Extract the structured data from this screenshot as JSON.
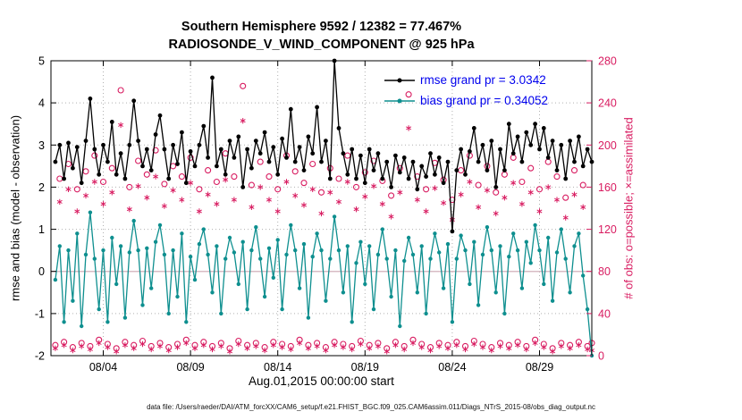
{
  "title": {
    "line1": "Southern Hemisphere 9592 / 12382 = 77.467%",
    "line2": "RADIOSONDE_V_WIND_COMPONENT @ 925 hPa"
  },
  "axes": {
    "ylabel_left": "rmse and bias (model - observation)",
    "ylabel_right": "# of obs: o=possible; ×=assimilated",
    "xlabel": "Aug.01,2015 00:00:00 start",
    "yticks_left": [
      -2,
      -1,
      0,
      1,
      2,
      3,
      4,
      5
    ],
    "yticks_right": [
      0,
      40,
      80,
      120,
      160,
      200,
      240,
      280
    ],
    "xticks": [
      {
        "day": 4,
        "label": "08/04"
      },
      {
        "day": 9,
        "label": "08/09"
      },
      {
        "day": 14,
        "label": "08/14"
      },
      {
        "day": 19,
        "label": "08/19"
      },
      {
        "day": 24,
        "label": "08/24"
      },
      {
        "day": 29,
        "label": "08/29"
      }
    ]
  },
  "legend": [
    {
      "name": "rmse",
      "label": "rmse grand pr = 3.0342",
      "color": "#000000"
    },
    {
      "name": "bias",
      "label": "bias grand pr = 0.34052",
      "color": "#0e8f8f"
    }
  ],
  "footer": "data file: /Users/raeder/DAI/ATM_forcXX/CAM6_setup/f.e21.FHIST_BGC.f09_025.CAM6assim.011/Diags_NTrS_2015-08/obs_diag_output.nc",
  "colors": {
    "rmse": "#000000",
    "bias": "#0e8f8f",
    "obs": "#d81b60",
    "legend_text": "#0000ee",
    "grid": "#b0b0b0",
    "zero_line": "#d8bcc4",
    "axis": "#000000",
    "tick_label": "#000000"
  },
  "chart_data": {
    "type": "line",
    "x_start_day": 1.25,
    "x_step_days": 0.25,
    "x_range_days": [
      1,
      32
    ],
    "ylim_left": [
      -2,
      5
    ],
    "ylim_right": [
      0,
      280
    ],
    "grid": true,
    "legend_position": "top-right-inside",
    "series": [
      {
        "name": "rmse",
        "axis": "left",
        "marker": "filled-circle",
        "values": [
          2.6,
          3.0,
          2.2,
          3.05,
          2.45,
          2.95,
          2.1,
          3.1,
          4.1,
          2.9,
          2.3,
          3.0,
          2.6,
          3.55,
          2.3,
          2.8,
          2.2,
          3.0,
          4.05,
          3.1,
          2.5,
          2.9,
          2.4,
          3.25,
          3.7,
          2.9,
          2.2,
          3.0,
          2.55,
          3.3,
          2.1,
          2.85,
          2.5,
          3.0,
          3.45,
          2.7,
          4.6,
          2.5,
          2.9,
          2.3,
          3.1,
          2.7,
          3.2,
          2.0,
          2.9,
          2.45,
          3.1,
          2.8,
          3.3,
          2.6,
          2.95,
          2.3,
          3.15,
          2.7,
          3.85,
          2.6,
          2.95,
          2.4,
          3.2,
          2.8,
          3.9,
          2.6,
          3.1,
          2.2,
          5.0,
          3.4,
          2.8,
          2.3,
          2.9,
          2.2,
          2.75,
          2.1,
          2.9,
          2.4,
          2.8,
          2.2,
          2.6,
          2.0,
          2.75,
          2.35,
          2.7,
          2.2,
          2.6,
          1.95,
          2.5,
          2.25,
          2.8,
          2.3,
          2.7,
          2.1,
          2.6,
          0.95,
          2.4,
          2.9,
          2.3,
          2.85,
          3.4,
          2.6,
          3.0,
          2.4,
          3.1,
          2.0,
          2.9,
          2.4,
          3.5,
          2.8,
          3.2,
          2.6,
          3.3,
          3.0,
          3.5,
          2.9,
          3.4,
          2.7,
          3.1,
          2.4,
          3.0,
          2.2,
          3.1,
          2.6,
          3.2,
          2.5,
          2.9,
          2.6
        ]
      },
      {
        "name": "bias",
        "axis": "left",
        "marker": "filled-circle",
        "values": [
          -0.2,
          0.6,
          -1.2,
          0.5,
          -0.7,
          0.9,
          -1.3,
          0.4,
          1.4,
          0.3,
          -0.9,
          0.5,
          -1.2,
          0.8,
          -0.3,
          0.6,
          -1.1,
          0.45,
          1.2,
          0.5,
          -0.8,
          0.55,
          -0.4,
          0.7,
          1.1,
          0.4,
          -1.0,
          0.5,
          -0.6,
          0.9,
          -1.2,
          0.35,
          -0.2,
          0.65,
          1.0,
          0.4,
          -0.5,
          0.6,
          -1.0,
          0.3,
          0.8,
          0.45,
          -0.3,
          0.7,
          -0.9,
          0.5,
          1.05,
          0.3,
          -0.6,
          0.55,
          -0.15,
          0.75,
          -0.9,
          0.4,
          1.1,
          0.5,
          -0.4,
          0.65,
          -1.1,
          0.35,
          0.9,
          0.5,
          -0.7,
          0.3,
          1.3,
          0.5,
          -0.5,
          0.6,
          -1.2,
          0.2,
          0.7,
          -0.3,
          0.6,
          -0.9,
          0.4,
          1.0,
          0.3,
          -0.6,
          0.5,
          -1.3,
          0.25,
          0.8,
          0.4,
          -0.5,
          0.6,
          -1.0,
          0.3,
          0.9,
          0.45,
          -0.4,
          0.65,
          -1.2,
          0.3,
          0.85,
          0.5,
          -0.3,
          0.7,
          -0.8,
          0.4,
          1.05,
          0.5,
          -0.5,
          0.6,
          -1.0,
          0.35,
          0.9,
          0.5,
          -0.4,
          0.7,
          0.2,
          1.1,
          0.5,
          -0.3,
          0.8,
          -0.7,
          0.45,
          1.0,
          0.3,
          -0.5,
          0.6,
          0.9,
          -0.1,
          -0.9,
          -2.0
        ]
      },
      {
        "name": "possible_obs",
        "axis": "right",
        "marker": "open-circle",
        "values": [
          10,
          168,
          13,
          182,
          8,
          158,
          12,
          175,
          9,
          190,
          15,
          165,
          11,
          178,
          7,
          252,
          13,
          160,
          10,
          185,
          14,
          172,
          9,
          195,
          12,
          163,
          8,
          180,
          11,
          170,
          15,
          188,
          10,
          158,
          13,
          176,
          9,
          165,
          12,
          192,
          7,
          170,
          14,
          256,
          10,
          162,
          12,
          184,
          8,
          170,
          13,
          158,
          11,
          190,
          9,
          175,
          15,
          164,
          10,
          182,
          12,
          155,
          8,
          178,
          13,
          168,
          11,
          190,
          9,
          160,
          14,
          174,
          10,
          185,
          12,
          166,
          7,
          152,
          13,
          178,
          9,
          248,
          15,
          170,
          11,
          158,
          8,
          183,
          12,
          167,
          10,
          148,
          13,
          176,
          9,
          190,
          14,
          162,
          11,
          180,
          8,
          155,
          12,
          172,
          10,
          188,
          13,
          165,
          9,
          178,
          15,
          158,
          11,
          184,
          7,
          170,
          12,
          150,
          10,
          176,
          13,
          162,
          9,
          12
        ]
      },
      {
        "name": "assimilated_obs",
        "axis": "right",
        "marker": "asterisk",
        "values": [
          7,
          146,
          10,
          158,
          5,
          137,
          9,
          152,
          6,
          165,
          12,
          144,
          8,
          155,
          4,
          219,
          10,
          139,
          7,
          161,
          11,
          150,
          6,
          170,
          9,
          142,
          5,
          157,
          8,
          148,
          12,
          164,
          7,
          137,
          10,
          153,
          6,
          144,
          9,
          167,
          4,
          148,
          11,
          223,
          7,
          141,
          9,
          160,
          5,
          148,
          10,
          137,
          8,
          165,
          6,
          152,
          12,
          143,
          7,
          158,
          9,
          135,
          5,
          155,
          10,
          146,
          8,
          165,
          6,
          139,
          11,
          151,
          7,
          161,
          9,
          144,
          4,
          132,
          10,
          155,
          6,
          216,
          12,
          148,
          8,
          137,
          5,
          159,
          9,
          145,
          7,
          129,
          10,
          153,
          6,
          165,
          11,
          141,
          8,
          157,
          5,
          135,
          9,
          150,
          7,
          164,
          10,
          144,
          6,
          155,
          12,
          137,
          8,
          160,
          4,
          148,
          9,
          131,
          7,
          153,
          10,
          141,
          6,
          5
        ]
      }
    ]
  }
}
